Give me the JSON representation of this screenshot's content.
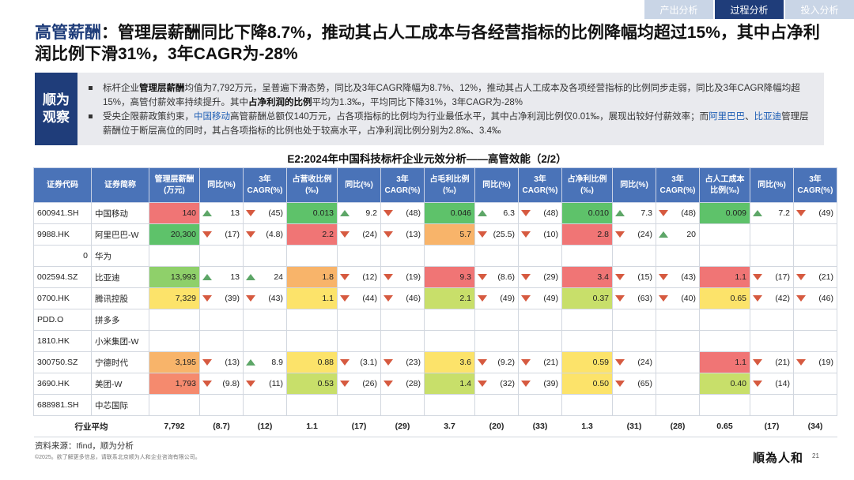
{
  "tabs": [
    {
      "label": "产出分析",
      "active": false
    },
    {
      "label": "过程分析",
      "active": true
    },
    {
      "label": "投入分析",
      "active": false
    }
  ],
  "headline": {
    "accent": "高管薪酬",
    "text": "：管理层薪酬同比下降8.7%，推动其占人工成本与各经营指标的比例降幅均超过15%，其中占净利润比例下滑31%，3年CAGR为-28%"
  },
  "observation": {
    "label": "顺为观察",
    "p1": {
      "a": "标杆企业",
      "b": "管理层薪酬",
      "c": "均值为7,792万元，呈普遍下滑态势，同比及3年CAGR降幅为8.7%、12%，推动其占人工成本及各项经营指标的比例同步走弱，同比及3年CAGR降幅均超15%，高管付薪效率持续提升。其中",
      "d": "占净利润的比例",
      "e": "平均为1.3‰，平均同比下降31%，3年CAGR为-28%"
    },
    "p2": {
      "a": "受央企限薪政策约束，",
      "b": "中国移动",
      "c": "高管薪酬总额仅140万元，占各项指标的比例均为行业最低水平，其中占净利润比例仅0.01‰，展现出较好付薪效率；而",
      "d": "阿里巴巴",
      "e": "、",
      "f": "比亚迪",
      "g": "管理层薪酬位于断层高位的同时，其占各项指标的比例也处于较高水平，占净利润比例分别为2.8‰、3.4‰"
    }
  },
  "table": {
    "title": "E2:2024年中国科技标杆企业元效分析——高管效能（2/2）",
    "headers": [
      "证券代码",
      "证券简称",
      "管理层薪酬(万元)",
      "同比(%)",
      "3年CAGR(%)",
      "占营收比例(‰)",
      "同比(%)",
      "3年CAGR(%)",
      "占毛利比例(‰)",
      "同比(%)",
      "3年CAGR(%)",
      "占净利比例(‰)",
      "同比(%)",
      "3年CAGR(%)",
      "占人工成本比例(‰)",
      "同比(%)",
      "3年CAGR(%)"
    ],
    "rows": [
      {
        "code": "600941.SH",
        "name": "中国移动",
        "cells": [
          {
            "v": "140",
            "c": "c-red"
          },
          {
            "v": "13",
            "t": "up"
          },
          {
            "v": "(45)",
            "t": "down"
          },
          {
            "v": "0.013",
            "c": "c-grn"
          },
          {
            "v": "9.2",
            "t": "up"
          },
          {
            "v": "(48)",
            "t": "down"
          },
          {
            "v": "0.046",
            "c": "c-grn"
          },
          {
            "v": "6.3",
            "t": "up"
          },
          {
            "v": "(48)",
            "t": "down"
          },
          {
            "v": "0.010",
            "c": "c-grn"
          },
          {
            "v": "7.3",
            "t": "up"
          },
          {
            "v": "(48)",
            "t": "down"
          },
          {
            "v": "0.009",
            "c": "c-grn"
          },
          {
            "v": "7.2",
            "t": "up"
          },
          {
            "v": "(49)",
            "t": "down"
          }
        ]
      },
      {
        "code": "9988.HK",
        "name": "阿里巴巴-W",
        "cells": [
          {
            "v": "20,300",
            "c": "c-grn"
          },
          {
            "v": "(17)",
            "t": "down"
          },
          {
            "v": "(4.8)",
            "t": "down"
          },
          {
            "v": "2.2",
            "c": "c-red"
          },
          {
            "v": "(24)",
            "t": "down"
          },
          {
            "v": "(13)",
            "t": "down"
          },
          {
            "v": "5.7",
            "c": "c-orng"
          },
          {
            "v": "(25.5)",
            "t": "down"
          },
          {
            "v": "(10)",
            "t": "down"
          },
          {
            "v": "2.8",
            "c": "c-red"
          },
          {
            "v": "(24)",
            "t": "down"
          },
          {
            "v": "20",
            "t": "up"
          },
          {
            "v": ""
          },
          {
            "v": ""
          },
          {
            "v": ""
          }
        ]
      },
      {
        "code": "0",
        "name": "华为",
        "codeRight": true,
        "cells": [
          {
            "v": ""
          },
          {
            "v": ""
          },
          {
            "v": ""
          },
          {
            "v": ""
          },
          {
            "v": ""
          },
          {
            "v": ""
          },
          {
            "v": ""
          },
          {
            "v": ""
          },
          {
            "v": ""
          },
          {
            "v": ""
          },
          {
            "v": ""
          },
          {
            "v": ""
          },
          {
            "v": ""
          },
          {
            "v": ""
          },
          {
            "v": ""
          }
        ]
      },
      {
        "code": "002594.SZ",
        "name": "比亚迪",
        "cells": [
          {
            "v": "13,993",
            "c": "c-grn2"
          },
          {
            "v": "13",
            "t": "up"
          },
          {
            "v": "24",
            "t": "up"
          },
          {
            "v": "1.8",
            "c": "c-orng"
          },
          {
            "v": "(12)",
            "t": "down"
          },
          {
            "v": "(19)",
            "t": "down"
          },
          {
            "v": "9.3",
            "c": "c-red"
          },
          {
            "v": "(8.6)",
            "t": "down"
          },
          {
            "v": "(29)",
            "t": "down"
          },
          {
            "v": "3.4",
            "c": "c-red"
          },
          {
            "v": "(15)",
            "t": "down"
          },
          {
            "v": "(43)",
            "t": "down"
          },
          {
            "v": "1.1",
            "c": "c-red"
          },
          {
            "v": "(17)",
            "t": "down"
          },
          {
            "v": "(21)",
            "t": "down"
          }
        ]
      },
      {
        "code": "0700.HK",
        "name": "腾讯控股",
        "cells": [
          {
            "v": "7,329",
            "c": "c-yel"
          },
          {
            "v": "(39)",
            "t": "down"
          },
          {
            "v": "(43)",
            "t": "down"
          },
          {
            "v": "1.1",
            "c": "c-yel"
          },
          {
            "v": "(44)",
            "t": "down"
          },
          {
            "v": "(46)",
            "t": "down"
          },
          {
            "v": "2.1",
            "c": "c-lgrn"
          },
          {
            "v": "(49)",
            "t": "down"
          },
          {
            "v": "(49)",
            "t": "down"
          },
          {
            "v": "0.37",
            "c": "c-lgrn"
          },
          {
            "v": "(63)",
            "t": "down"
          },
          {
            "v": "(40)",
            "t": "down"
          },
          {
            "v": "0.65",
            "c": "c-yel"
          },
          {
            "v": "(42)",
            "t": "down"
          },
          {
            "v": "(46)",
            "t": "down"
          }
        ]
      },
      {
        "code": "PDD.O",
        "name": "拼多多",
        "cells": [
          {
            "v": ""
          },
          {
            "v": ""
          },
          {
            "v": ""
          },
          {
            "v": ""
          },
          {
            "v": ""
          },
          {
            "v": ""
          },
          {
            "v": ""
          },
          {
            "v": ""
          },
          {
            "v": ""
          },
          {
            "v": ""
          },
          {
            "v": ""
          },
          {
            "v": ""
          },
          {
            "v": ""
          },
          {
            "v": ""
          },
          {
            "v": ""
          }
        ]
      },
      {
        "code": "1810.HK",
        "name": "小米集团-W",
        "cells": [
          {
            "v": ""
          },
          {
            "v": ""
          },
          {
            "v": ""
          },
          {
            "v": ""
          },
          {
            "v": ""
          },
          {
            "v": ""
          },
          {
            "v": ""
          },
          {
            "v": ""
          },
          {
            "v": ""
          },
          {
            "v": ""
          },
          {
            "v": ""
          },
          {
            "v": ""
          },
          {
            "v": ""
          },
          {
            "v": ""
          },
          {
            "v": ""
          }
        ]
      },
      {
        "code": "300750.SZ",
        "name": "宁德时代",
        "cells": [
          {
            "v": "3,195",
            "c": "c-orng"
          },
          {
            "v": "(13)",
            "t": "down"
          },
          {
            "v": "8.9",
            "t": "up"
          },
          {
            "v": "0.88",
            "c": "c-yel"
          },
          {
            "v": "(3.1)",
            "t": "down"
          },
          {
            "v": "(23)",
            "t": "down"
          },
          {
            "v": "3.6",
            "c": "c-yel"
          },
          {
            "v": "(9.2)",
            "t": "down"
          },
          {
            "v": "(21)",
            "t": "down"
          },
          {
            "v": "0.59",
            "c": "c-yel"
          },
          {
            "v": "(24)",
            "t": "down"
          },
          {
            "v": ""
          },
          {
            "v": "1.1",
            "c": "c-red"
          },
          {
            "v": "(21)",
            "t": "down"
          },
          {
            "v": "(19)",
            "t": "down"
          }
        ]
      },
      {
        "code": "3690.HK",
        "name": "美团-W",
        "cells": [
          {
            "v": "1,793",
            "c": "c-red2"
          },
          {
            "v": "(9.8)",
            "t": "down"
          },
          {
            "v": "(11)",
            "t": "down"
          },
          {
            "v": "0.53",
            "c": "c-lgrn"
          },
          {
            "v": "(26)",
            "t": "down"
          },
          {
            "v": "(28)",
            "t": "down"
          },
          {
            "v": "1.4",
            "c": "c-lgrn"
          },
          {
            "v": "(32)",
            "t": "down"
          },
          {
            "v": "(39)",
            "t": "down"
          },
          {
            "v": "0.50",
            "c": "c-yel"
          },
          {
            "v": "(65)",
            "t": "down"
          },
          {
            "v": ""
          },
          {
            "v": "0.40",
            "c": "c-lgrn"
          },
          {
            "v": "(14)",
            "t": "down"
          },
          {
            "v": ""
          }
        ]
      },
      {
        "code": "688981.SH",
        "name": "中芯国际",
        "cells": [
          {
            "v": ""
          },
          {
            "v": ""
          },
          {
            "v": ""
          },
          {
            "v": ""
          },
          {
            "v": ""
          },
          {
            "v": ""
          },
          {
            "v": ""
          },
          {
            "v": ""
          },
          {
            "v": ""
          },
          {
            "v": ""
          },
          {
            "v": ""
          },
          {
            "v": ""
          },
          {
            "v": ""
          },
          {
            "v": ""
          },
          {
            "v": ""
          }
        ]
      }
    ],
    "average": {
      "label": "行业平均",
      "cells": [
        "7,792",
        "(8.7)",
        "(12)",
        "1.1",
        "(17)",
        "(29)",
        "3.7",
        "(20)",
        "(33)",
        "1.3",
        "(31)",
        "(28)",
        "0.65",
        "(17)",
        "(34)"
      ]
    }
  },
  "footer": {
    "source": "资料来源：Ifind，顺为分析",
    "copyright": "©2025。欲了解更多信息，请联系北京顺为人和企业咨询有限公司。",
    "brand": "順為人和",
    "page": "21"
  },
  "colors": {
    "navy": "#1f3d7a",
    "header_blue": "#4a73b8",
    "up_arrow": "#5da667",
    "down_arrow": "#d65a40"
  },
  "icons": {
    "up": "triangle-up-icon",
    "down": "triangle-down-icon"
  }
}
